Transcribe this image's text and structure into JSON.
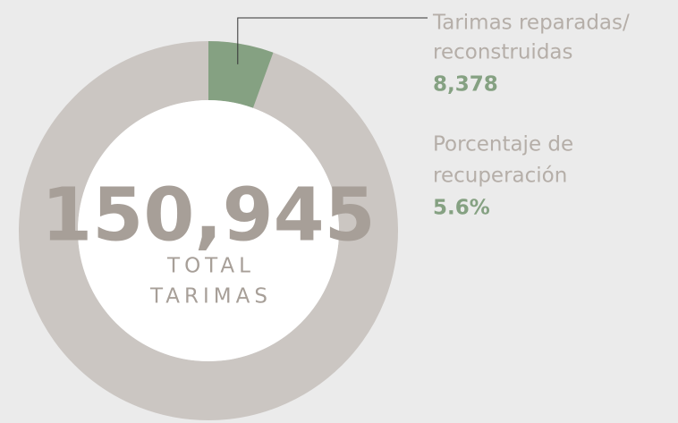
{
  "chart_data": {
    "type": "donut",
    "total": {
      "value": 150945,
      "label": "150,945"
    },
    "center_label": [
      "TOTAL",
      "TARIMAS"
    ],
    "ring_color": "#cbc6c2",
    "segments": [
      {
        "name": [
          "Tarimas reparadas/",
          "reconstruidas"
        ],
        "value": 8378,
        "value_label": "8,378",
        "color": "#85a182"
      }
    ],
    "percentage": {
      "name": [
        "Porcentaje de",
        "recuperación"
      ],
      "value": 5.6,
      "value_label": "5.6%"
    }
  }
}
